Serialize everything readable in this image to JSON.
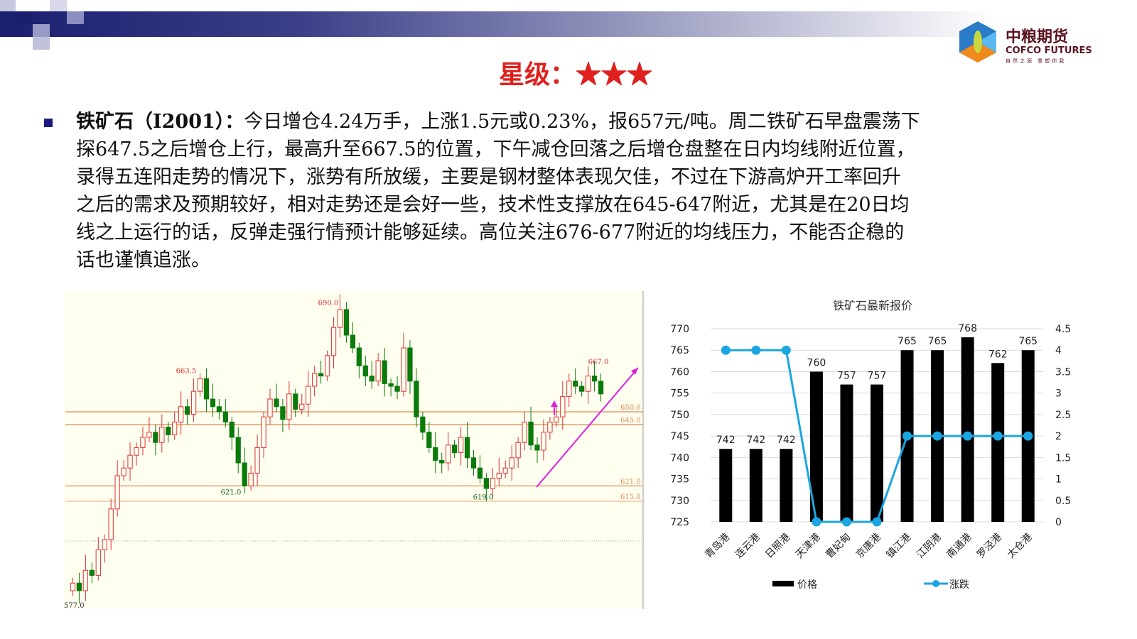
{
  "header": {
    "logo": {
      "cn": "中粮期货",
      "en": "COFCO FUTURES",
      "tagline": "自然之源 重塑你我"
    },
    "title": "星级：",
    "stars": 3,
    "stars_text": "★★★"
  },
  "body": {
    "subject": "铁矿石（I2001）：",
    "lines": [
      "今日增仓4.24万手，上涨1.5元或0.23%，报657元/吨。周二铁矿石早盘震荡下",
      "探647.5之后增仓上行，最高升至667.5的位置，下午减仓回落之后增仓盘整在日内均线附近位置，",
      "录得五连阳走势的情况下，涨势有所放缓，主要是钢材整体表现欠佳，不过在下游高炉开工率回升",
      "之后的需求及预期较好，相对走势还是会好一些，技术性支撑放在645-647附近，尤其是在20日均",
      "线之上运行的话，反弹走强行情预计能够延续。高位关注676-677附近的均线压力，不能否企稳的",
      "话也谨慎追涨。"
    ]
  },
  "chart_data": [
    {
      "type": "candlestick",
      "colors": {
        "up": "#e03030",
        "down": "#0a7a0a",
        "background": "#fffff0",
        "levels": "#e08850",
        "trend": "#e020e0"
      },
      "closes": [
        583,
        580,
        588,
        586,
        596,
        600,
        612,
        625,
        628,
        633,
        636,
        640,
        642,
        638,
        644,
        641,
        646,
        652,
        649,
        658,
        663,
        655,
        652,
        650,
        646,
        640,
        630,
        621,
        626,
        636,
        648,
        655,
        652,
        647,
        657,
        651,
        653,
        660,
        665,
        664,
        672,
        683,
        690,
        680,
        675,
        668,
        664,
        662,
        670,
        661,
        660,
        658,
        675,
        662,
        648,
        642,
        636,
        631,
        630,
        637,
        634,
        640,
        632,
        628,
        624,
        620,
        624,
        626,
        628,
        632,
        638,
        646,
        637,
        635,
        642,
        646,
        648,
        656,
        662,
        660,
        658,
        664,
        662,
        657
      ],
      "annotations": {
        "high": "690.0",
        "left_high": "663.5",
        "left_low": "621.0",
        "right_low": "619.0",
        "recent_high": "667.0",
        "start": "577.0"
      },
      "levels": [
        {
          "value": 650,
          "label": "650.0"
        },
        {
          "value": 645,
          "label": "645.0"
        },
        {
          "value": 621,
          "label": "621.0"
        },
        {
          "value": 615,
          "label": "615.0"
        }
      ]
    },
    {
      "type": "bar+line",
      "title": "铁矿石最新报价",
      "categories": [
        "青岛港",
        "连云港",
        "日照港",
        "天津港",
        "曹妃甸",
        "京唐港",
        "镇江港",
        "江阴港",
        "南通港",
        "罗泾港",
        "太仓港"
      ],
      "series": [
        {
          "name": "价格",
          "type": "bar",
          "axis": "left",
          "color": "#000000",
          "values": [
            742,
            742,
            742,
            760,
            757,
            757,
            765,
            765,
            768,
            762,
            765
          ]
        },
        {
          "name": "涨跌",
          "type": "line",
          "axis": "right",
          "color": "#1aa6e0",
          "values": [
            4,
            4,
            4,
            0,
            0,
            0,
            2,
            2,
            2,
            2,
            2
          ]
        }
      ],
      "ylim_left": [
        725,
        770
      ],
      "yticks_left": [
        725,
        730,
        735,
        740,
        745,
        750,
        755,
        760,
        765,
        770
      ],
      "ylim_right": [
        0,
        4.5
      ],
      "yticks_right": [
        "0",
        "0.5",
        "1",
        "1.5",
        "2",
        "2.5",
        "3",
        "3.5",
        "4",
        "4.5"
      ],
      "grid": true,
      "legend": "bottom"
    }
  ]
}
